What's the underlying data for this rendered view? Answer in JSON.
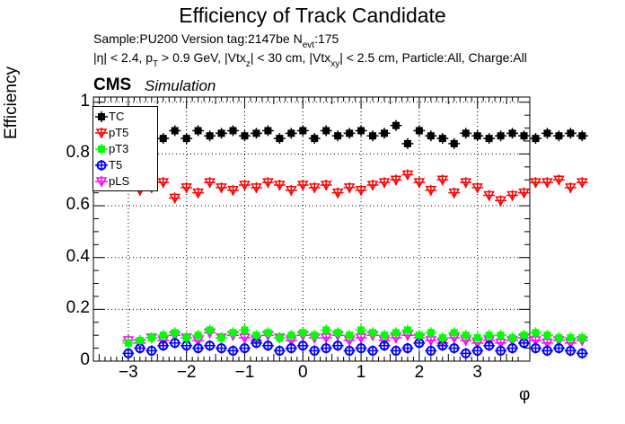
{
  "header": {
    "title": "Efficiency of Track Candidate",
    "sample_line": "Sample:PU200   Version tag:2147be  N",
    "sample_sub": "evt",
    "sample_tail": ":175",
    "cuts": {
      "p1": "|η| < 2.4, p",
      "s1": "T",
      "p2": " > 0.9 GeV, |Vtx",
      "s2": "z",
      "p3": "| < 30 cm, |Vtx",
      "s3": "xy",
      "p4": "| < 2.5 cm, Particle:All, Charge:All"
    },
    "cms_label": "CMS",
    "simulation_label": "Simulation"
  },
  "chart_data": {
    "type": "scatter",
    "title": "Efficiency of Track Candidate",
    "xlabel": "φ",
    "ylabel": "Efficiency",
    "xlim": [
      -3.6,
      3.9
    ],
    "ylim": [
      0,
      1.02
    ],
    "x_ticks": [
      "−3",
      "−2",
      "−1",
      "0",
      "1",
      "2",
      "3"
    ],
    "x_tick_values": [
      -3,
      -2,
      -1,
      0,
      1,
      2,
      3
    ],
    "y_ticks": [
      "0",
      "0.2",
      "0.4",
      "0.6",
      "0.8",
      "1"
    ],
    "y_tick_values": [
      0,
      0.2,
      0.4,
      0.6,
      0.8,
      1.0
    ],
    "grid": true,
    "legend_position": "top-left",
    "x_bin_width": 0.2,
    "x_first_bin_center": -3.0,
    "series": [
      {
        "name": "TC",
        "color": "#000000",
        "marker": "filled-square",
        "values": [
          0.85,
          0.83,
          0.87,
          0.86,
          0.89,
          0.86,
          0.89,
          0.87,
          0.88,
          0.89,
          0.87,
          0.88,
          0.89,
          0.86,
          0.88,
          0.89,
          0.86,
          0.89,
          0.87,
          0.88,
          0.89,
          0.87,
          0.88,
          0.91,
          0.84,
          0.89,
          0.87,
          0.86,
          0.84,
          0.88,
          0.87,
          0.86,
          0.87,
          0.88,
          0.87,
          0.86,
          0.88,
          0.87,
          0.88,
          0.87
        ]
      },
      {
        "name": "pT5",
        "color": "#ff0000",
        "marker": "open-triangle-down",
        "values": [
          0.69,
          0.66,
          0.67,
          0.69,
          0.63,
          0.67,
          0.65,
          0.69,
          0.67,
          0.66,
          0.68,
          0.67,
          0.69,
          0.68,
          0.66,
          0.68,
          0.67,
          0.68,
          0.65,
          0.67,
          0.66,
          0.68,
          0.69,
          0.7,
          0.72,
          0.69,
          0.66,
          0.7,
          0.65,
          0.69,
          0.67,
          0.64,
          0.62,
          0.64,
          0.65,
          0.69,
          0.69,
          0.7,
          0.67,
          0.69
        ]
      },
      {
        "name": "pT3",
        "color": "#00ff00",
        "marker": "filled-square",
        "values": [
          0.07,
          0.08,
          0.09,
          0.1,
          0.11,
          0.09,
          0.1,
          0.12,
          0.09,
          0.11,
          0.12,
          0.1,
          0.11,
          0.09,
          0.1,
          0.11,
          0.1,
          0.12,
          0.11,
          0.1,
          0.12,
          0.11,
          0.1,
          0.11,
          0.12,
          0.1,
          0.11,
          0.09,
          0.11,
          0.1,
          0.09,
          0.1,
          0.1,
          0.09,
          0.1,
          0.11,
          0.1,
          0.09,
          0.09,
          0.09
        ]
      },
      {
        "name": "T5",
        "color": "#0000ff",
        "marker": "open-circle",
        "values": [
          0.03,
          0.05,
          0.04,
          0.06,
          0.07,
          0.06,
          0.05,
          0.06,
          0.05,
          0.04,
          0.05,
          0.07,
          0.06,
          0.04,
          0.05,
          0.06,
          0.04,
          0.05,
          0.06,
          0.04,
          0.05,
          0.04,
          0.06,
          0.04,
          0.05,
          0.07,
          0.04,
          0.06,
          0.05,
          0.03,
          0.04,
          0.06,
          0.04,
          0.05,
          0.07,
          0.05,
          0.04,
          0.05,
          0.04,
          0.03
        ]
      },
      {
        "name": "pLS",
        "color": "#ff00ff",
        "marker": "open-triangle-down",
        "values": [
          0.08,
          0.07,
          0.09,
          0.08,
          0.1,
          0.09,
          0.08,
          0.11,
          0.09,
          0.1,
          0.09,
          0.08,
          0.1,
          0.09,
          0.08,
          0.1,
          0.09,
          0.09,
          0.1,
          0.08,
          0.09,
          0.1,
          0.08,
          0.09,
          0.1,
          0.09,
          0.08,
          0.07,
          0.09,
          0.08,
          0.07,
          0.08,
          0.07,
          0.08,
          0.09,
          0.08,
          0.07,
          0.08,
          0.07,
          0.08
        ]
      }
    ]
  }
}
